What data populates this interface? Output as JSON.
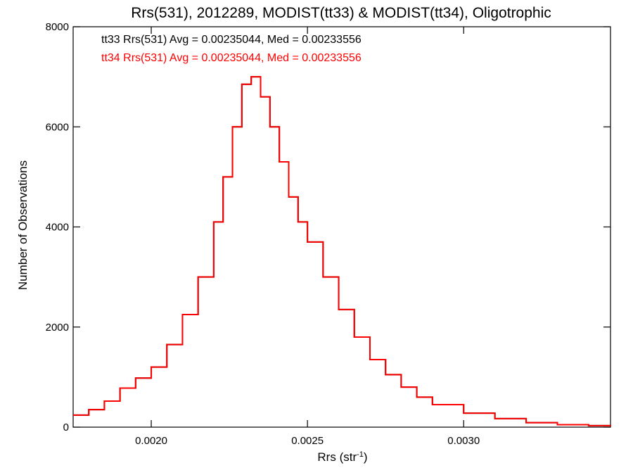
{
  "chart_data": {
    "type": "line",
    "title": "Rrs(531), 2012289, MODIST(tt33) & MODIST(tt34), Oligotrophic",
    "xlabel": "Rrs (str",
    "xlabel_sup": "-1",
    "xlabel_close": ")",
    "ylabel": "Number of Observations",
    "xlim": [
      0.00175,
      0.00347
    ],
    "ylim": [
      0,
      8000
    ],
    "x_ticks": [
      0.002,
      0.0025,
      0.003
    ],
    "x_tick_labels": [
      "0.0020",
      "0.0025",
      "0.0030"
    ],
    "y_ticks": [
      0,
      2000,
      4000,
      6000,
      8000
    ],
    "y_tick_labels": [
      "0",
      "2000",
      "4000",
      "6000",
      "8000"
    ],
    "grid": false,
    "annotations": [
      {
        "text": "tt33 Rrs(531) Avg = 0.00235044, Med = 0.00233556",
        "color": "#000000"
      },
      {
        "text": "tt34 Rrs(531) Avg = 0.00235044, Med = 0.00233556",
        "color": "#ff0000"
      }
    ],
    "series": [
      {
        "name": "tt33",
        "color": "#000000",
        "x": [
          0.00175,
          0.0018,
          0.00185,
          0.0019,
          0.00195,
          0.002,
          0.00205,
          0.0021,
          0.00215,
          0.0022,
          0.00223,
          0.00226,
          0.00229,
          0.00232,
          0.00235,
          0.00238,
          0.00241,
          0.00244,
          0.00247,
          0.0025,
          0.00255,
          0.0026,
          0.00265,
          0.0027,
          0.00275,
          0.0028,
          0.00285,
          0.0029,
          0.003,
          0.0031,
          0.0032,
          0.0033,
          0.0034,
          0.00347
        ],
        "y": [
          240,
          350,
          520,
          780,
          980,
          1200,
          1650,
          2250,
          3000,
          4100,
          5000,
          6000,
          6850,
          7000,
          6600,
          6000,
          5300,
          4600,
          4100,
          3700,
          3000,
          2350,
          1800,
          1350,
          1050,
          800,
          600,
          450,
          280,
          170,
          90,
          50,
          30,
          20
        ]
      },
      {
        "name": "tt34",
        "color": "#ff0000",
        "x": [
          0.00175,
          0.0018,
          0.00185,
          0.0019,
          0.00195,
          0.002,
          0.00205,
          0.0021,
          0.00215,
          0.0022,
          0.00223,
          0.00226,
          0.00229,
          0.00232,
          0.00235,
          0.00238,
          0.00241,
          0.00244,
          0.00247,
          0.0025,
          0.00255,
          0.0026,
          0.00265,
          0.0027,
          0.00275,
          0.0028,
          0.00285,
          0.0029,
          0.003,
          0.0031,
          0.0032,
          0.0033,
          0.0034,
          0.00347
        ],
        "y": [
          240,
          350,
          520,
          780,
          980,
          1200,
          1650,
          2250,
          3000,
          4100,
          5000,
          6000,
          6850,
          7000,
          6600,
          6000,
          5300,
          4600,
          4100,
          3700,
          3000,
          2350,
          1800,
          1350,
          1050,
          800,
          600,
          450,
          280,
          170,
          90,
          50,
          30,
          20
        ]
      }
    ]
  }
}
